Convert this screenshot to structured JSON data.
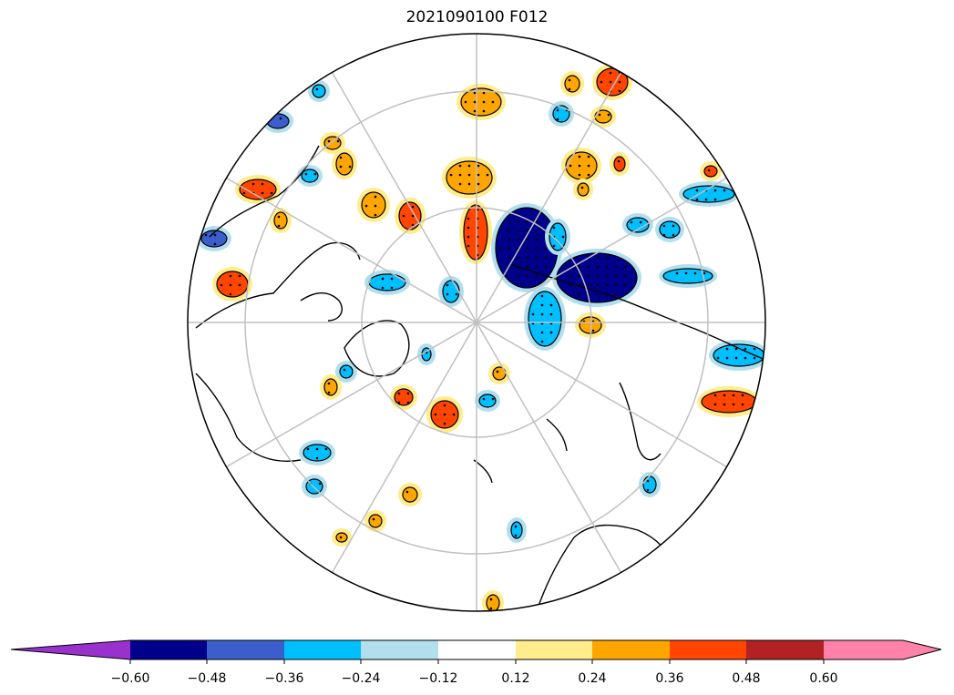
{
  "title": "2021090100 F012",
  "colorbar": {
    "levels": [
      -0.6,
      -0.48,
      -0.36,
      -0.24,
      -0.12,
      0.12,
      0.24,
      0.36,
      0.48,
      0.6
    ],
    "tick_labels": [
      "−0.60",
      "−0.48",
      "−0.36",
      "−0.24",
      "−0.12",
      "0.12",
      "0.24",
      "0.36",
      "0.48",
      "0.60"
    ],
    "colors": [
      "#9932cc",
      "#00008b",
      "#3a5fcd",
      "#00bfff",
      "#b2dfee",
      "#ffffff",
      "#ffec8b",
      "#ffa500",
      "#ff4500",
      "#b22222",
      "#ff82ab"
    ],
    "extend": "both"
  },
  "map": {
    "projection": "north-polar-stereographic",
    "gridlines": true,
    "coastlines": true,
    "stippling": "significant regions",
    "palette": {
      "strong_neg": "#00008b",
      "neg2": "#3a5fcd",
      "neg": "#00bfff",
      "weak_neg": "#b2dfee",
      "weak_pos": "#ffec8b",
      "pos": "#ffa500",
      "strong_pos": "#ff4500"
    }
  }
}
